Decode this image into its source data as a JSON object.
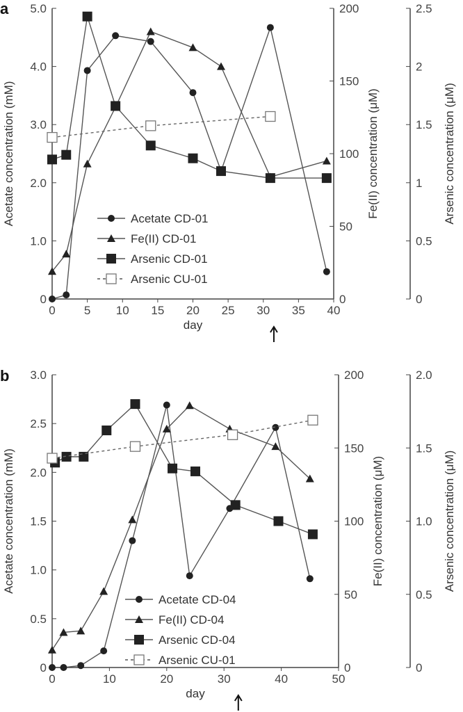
{
  "chart_data": [
    {
      "panel": "a",
      "type": "line",
      "xlabel": "day",
      "xlim": [
        0,
        40
      ],
      "xticks": [
        0,
        5,
        10,
        15,
        20,
        25,
        30,
        35,
        40
      ],
      "arrow_day": 31.5,
      "axes": {
        "left": {
          "label": "Acetate concentration (mM)",
          "lim": [
            0,
            5
          ],
          "ticks": [
            0,
            1,
            2,
            3,
            4,
            5
          ],
          "tick_labels": [
            "0",
            "1.0",
            "2.0",
            "3.0",
            "4.0",
            "5.0"
          ]
        },
        "fe": {
          "label": "Fe(II) concentration (μM)",
          "lim": [
            0,
            200
          ],
          "ticks": [
            0,
            50,
            100,
            150,
            200
          ],
          "tick_labels": [
            "0",
            "50",
            "100",
            "150",
            "200"
          ]
        },
        "as": {
          "label": "Arsenic concentration (μM)",
          "lim": [
            0,
            2.5
          ],
          "ticks": [
            0,
            0.5,
            1,
            1.5,
            2,
            2.5
          ],
          "tick_labels": [
            "0",
            "0.5",
            "1",
            "1.5",
            "2",
            "2.5"
          ]
        }
      },
      "series": [
        {
          "name": "Acetate CD-01",
          "axis": "left",
          "marker": "circle",
          "dashed": false,
          "x": [
            0,
            2,
            5,
            9,
            14,
            20,
            24,
            31,
            39
          ],
          "y": [
            0,
            0.07,
            3.93,
            4.53,
            4.43,
            3.55,
            2.2,
            4.67,
            0.47
          ]
        },
        {
          "name": "Fe(II) CD-01",
          "axis": "fe",
          "marker": "triangle",
          "dashed": false,
          "x": [
            0,
            2,
            5,
            9,
            14,
            20,
            24,
            31,
            39
          ],
          "y": [
            19,
            31,
            93,
            132,
            184,
            173,
            160,
            84,
            95
          ]
        },
        {
          "name": "Arsenic CD-01",
          "axis": "as",
          "marker": "square",
          "dashed": false,
          "x": [
            0,
            2,
            5,
            9,
            14,
            20,
            24,
            31,
            39
          ],
          "y": [
            1.2,
            1.24,
            2.43,
            1.66,
            1.32,
            1.21,
            1.1,
            1.04,
            1.04
          ]
        },
        {
          "name": "Arsenic CU-01",
          "axis": "as",
          "marker": "open-square",
          "dashed": true,
          "x": [
            0,
            14,
            31
          ],
          "y": [
            1.39,
            1.49,
            1.57
          ]
        }
      ]
    },
    {
      "panel": "b",
      "type": "line",
      "xlabel": "day",
      "xlim": [
        0,
        50
      ],
      "xticks": [
        0,
        10,
        20,
        30,
        40,
        50
      ],
      "arrow_day": 32.5,
      "axes": {
        "left": {
          "label": "Acetate concentration (mM)",
          "lim": [
            0,
            3
          ],
          "ticks": [
            0,
            0.5,
            1,
            1.5,
            2,
            2.5,
            3
          ],
          "tick_labels": [
            "0",
            "0.5",
            "1.0",
            "1.5",
            "2.0",
            "2.5",
            "3.0"
          ]
        },
        "fe": {
          "label": "Fe(II) concentration (μM)",
          "lim": [
            0,
            200
          ],
          "ticks": [
            0,
            50,
            100,
            150,
            200
          ],
          "tick_labels": [
            "0",
            "50",
            "100",
            "150",
            "200"
          ]
        },
        "as": {
          "label": "Arsenic concentration (μM)",
          "lim": [
            0,
            2
          ],
          "ticks": [
            0,
            0.5,
            1,
            1.5,
            2
          ],
          "tick_labels": [
            "0",
            "0.5",
            "1.0",
            "1.5",
            "2.0"
          ]
        }
      },
      "series": [
        {
          "name": "Acetate CD-04",
          "axis": "left",
          "marker": "circle",
          "dashed": false,
          "x": [
            0,
            2,
            5,
            9,
            14,
            20,
            24,
            31,
            39,
            45
          ],
          "y": [
            0,
            0,
            0.02,
            0.17,
            1.3,
            2.69,
            0.94,
            1.63,
            2.46,
            0.91
          ]
        },
        {
          "name": "Fe(II) CD-04",
          "axis": "fe",
          "marker": "triangle",
          "dashed": false,
          "x": [
            0,
            2,
            5,
            9,
            14,
            20,
            24,
            31,
            39,
            45
          ],
          "y": [
            12,
            24,
            25,
            52,
            101,
            163,
            179,
            163,
            151,
            129
          ]
        },
        {
          "name": "Arsenic CD-04",
          "axis": "as",
          "marker": "square",
          "dashed": false,
          "x": [
            0.5,
            2.5,
            5.5,
            9.5,
            14.5,
            21,
            25,
            32,
            39.5,
            45.5
          ],
          "y": [
            1.4,
            1.44,
            1.44,
            1.62,
            1.8,
            1.36,
            1.34,
            1.11,
            1.0,
            0.91
          ]
        },
        {
          "name": "Arsenic CU-01",
          "axis": "as",
          "marker": "open-square",
          "dashed": true,
          "x": [
            0,
            14.5,
            31.5,
            45.5
          ],
          "y": [
            1.43,
            1.51,
            1.59,
            1.69
          ]
        }
      ]
    }
  ],
  "panels": [
    "a",
    "b"
  ]
}
